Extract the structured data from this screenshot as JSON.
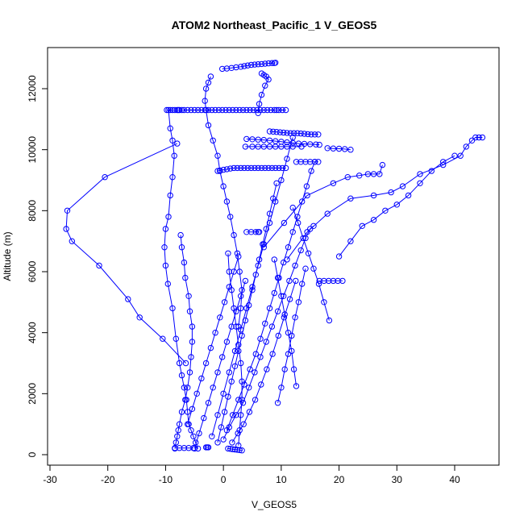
{
  "chart_data": {
    "type": "scatter",
    "title": "ATOM2 Northeast_Pacific_1 V_GEOS5",
    "xlabel": "V_GEOS5",
    "ylabel": "Altitude (m)",
    "xlim": [
      -30,
      45
    ],
    "ylim": [
      0,
      12800
    ],
    "xticks": [
      -30,
      -20,
      -10,
      0,
      10,
      20,
      30,
      40
    ],
    "yticks": [
      0,
      2000,
      4000,
      6000,
      8000,
      10000,
      12000
    ],
    "color": "#0000ff",
    "markers": "open-circle",
    "connected": true,
    "series": [
      {
        "values_x": [
          -9.8,
          -9.2,
          -8.8,
          -8.4,
          -8.0,
          -7.8,
          -7.6,
          -7.2,
          -6.8,
          -6.2,
          -5.6,
          -5.0,
          -4.4,
          -3.8,
          -3.2,
          -2.6,
          -2.0,
          -1.4,
          -0.8,
          -0.2,
          0.4,
          1.0,
          1.6,
          2.2,
          2.8,
          3.4,
          4.0,
          4.6,
          5.2,
          5.8,
          6.4,
          7.0,
          7.6,
          8.2,
          8.8,
          9.2,
          9.6,
          10.2,
          10.8
        ],
        "values_y": [
          11300,
          11300,
          11300,
          11300,
          11300,
          11300,
          11300,
          11300,
          11300,
          11300,
          11300,
          11300,
          11300,
          11300,
          11300,
          11300,
          11300,
          11300,
          11300,
          11300,
          11300,
          11300,
          11300,
          11300,
          11300,
          11300,
          11300,
          11300,
          11300,
          11300,
          11300,
          11300,
          11300,
          11300,
          11300,
          11300,
          11300,
          11300,
          11300
        ]
      },
      {
        "values_x": [
          -8.0,
          -20.5,
          -27.0,
          -27.2,
          -26.2,
          -21.5,
          -16.5,
          -14.5,
          -10.5,
          -6.5
        ],
        "values_y": [
          10200,
          9100,
          8000,
          7400,
          7000,
          6200,
          5100,
          4500,
          3800,
          3000
        ]
      },
      {
        "values_x": [
          -9.5,
          -9.2,
          -8.8,
          -8.5,
          -8.8,
          -9.2,
          -9.5,
          -10.0,
          -10.2,
          -10.0,
          -9.6,
          -8.8,
          -8.2,
          -7.6,
          -7.2,
          -6.8,
          -6.4,
          -6.2,
          -6.0,
          -5.6,
          -5.2,
          -4.8,
          -4.4
        ],
        "values_y": [
          11300,
          10700,
          10300,
          9800,
          9100,
          8500,
          7800,
          7400,
          6800,
          6200,
          5600,
          4800,
          3800,
          3000,
          2600,
          2200,
          1800,
          1400,
          1000,
          800,
          600,
          400,
          200
        ]
      },
      {
        "values_x": [
          -7.4,
          -7.2,
          -6.8,
          -6.6,
          -6.0,
          -5.8,
          -5.4,
          -5.4,
          -5.6,
          -5.8,
          -6.2,
          -6.6,
          -7.2,
          -7.6,
          -7.8,
          -8.0,
          -8.2,
          -8.4
        ],
        "values_y": [
          7200,
          6800,
          6300,
          5800,
          5200,
          4700,
          4200,
          3700,
          3200,
          2700,
          2200,
          1800,
          1400,
          1000,
          800,
          600,
          400,
          200
        ]
      },
      {
        "values_x": [
          -2.2,
          -2.6,
          -3.0,
          -3.2,
          -3.0,
          -2.6,
          -1.8,
          -1.0,
          -0.6,
          0.0,
          0.6,
          1.2,
          1.8,
          2.4,
          2.8,
          3.2,
          3.0,
          2.6
        ],
        "values_y": [
          12400,
          12200,
          12000,
          11600,
          11300,
          10800,
          10300,
          9800,
          9300,
          8800,
          8300,
          7800,
          7200,
          6600,
          6000,
          5400,
          4800,
          4200
        ]
      },
      {
        "values_x": [
          -0.2,
          0.6,
          1.4,
          2.2,
          3.0,
          3.6,
          4.2,
          4.8,
          5.4,
          6.0,
          6.6,
          7.2,
          7.8,
          8.4,
          8.8,
          9.0
        ],
        "values_y": [
          12650,
          12660,
          12680,
          12700,
          12720,
          12740,
          12760,
          12780,
          12790,
          12800,
          12810,
          12820,
          12830,
          12840,
          12840,
          12850
        ]
      },
      {
        "values_x": [
          6.6,
          7.0,
          7.4,
          7.8,
          7.2,
          6.6,
          6.2,
          6.0
        ],
        "values_y": [
          12500,
          12450,
          12400,
          12300,
          12100,
          11800,
          11500,
          11200
        ]
      },
      {
        "values_x": [
          8.0,
          8.6,
          9.2,
          9.8,
          10.4,
          11.0,
          11.6,
          12.2,
          12.8,
          13.4,
          14.0,
          14.6,
          15.2,
          15.8,
          16.4
        ],
        "values_y": [
          10600,
          10590,
          10580,
          10570,
          10560,
          10550,
          10540,
          10540,
          10540,
          10530,
          10520,
          10510,
          10500,
          10500,
          10500
        ]
      },
      {
        "values_x": [
          4.0,
          5.0,
          6.0,
          7.0,
          8.0,
          9.0,
          10.0,
          11.0,
          12.0,
          13.0,
          14.0,
          15.0,
          16.0,
          16.6
        ],
        "values_y": [
          10350,
          10340,
          10330,
          10320,
          10300,
          10280,
          10260,
          10240,
          10220,
          10200,
          10190,
          10180,
          10170,
          10160
        ]
      },
      {
        "values_x": [
          3.8,
          5.0,
          6.0,
          7.0,
          8.0,
          9.0,
          10.0,
          11.0,
          12.0,
          13.5
        ],
        "values_y": [
          10100,
          10100,
          10100,
          10100,
          10100,
          10100,
          10100,
          10100,
          10100,
          10100
        ]
      },
      {
        "values_x": [
          18.0,
          19.0,
          20.0,
          21.0,
          22.0
        ],
        "values_y": [
          10050,
          10040,
          10030,
          10020,
          10000
        ]
      },
      {
        "values_x": [
          -1.0,
          -0.6,
          0.0,
          0.6,
          1.2,
          1.8,
          2.4,
          3.0,
          3.6,
          4.2,
          4.8,
          5.4,
          6.0,
          6.6,
          7.2,
          7.8,
          8.4,
          9.0,
          9.6,
          10.2,
          10.8
        ],
        "values_y": [
          9300,
          9320,
          9340,
          9360,
          9380,
          9400,
          9400,
          9400,
          9400,
          9400,
          9400,
          9400,
          9400,
          9400,
          9400,
          9400,
          9400,
          9400,
          9400,
          9400,
          9400
        ]
      },
      {
        "values_x": [
          12.6,
          13.4,
          14.2,
          15.0,
          15.8,
          16.4
        ],
        "values_y": [
          9600,
          9600,
          9600,
          9600,
          9600,
          9600
        ]
      },
      {
        "values_x": [
          7.0,
          10.5,
          14.5,
          19.0,
          21.5,
          23.5,
          25.0,
          26.0,
          27.0,
          27.5
        ],
        "values_y": [
          6800,
          7600,
          8500,
          8900,
          9100,
          9150,
          9200,
          9200,
          9200,
          9500
        ]
      },
      {
        "values_x": [
          11.0,
          14.5,
          18.0,
          22.0,
          26.0,
          29.0,
          31.0,
          34.0,
          38.0,
          41.0,
          42.0,
          43.0,
          43.6,
          44.2,
          44.8
        ],
        "values_y": [
          6400,
          7300,
          7900,
          8400,
          8500,
          8600,
          8800,
          9200,
          9500,
          9800,
          10100,
          10300,
          10400,
          10400,
          10400
        ]
      },
      {
        "values_x": [
          20.0,
          22.0,
          24.0,
          26.0,
          28.0,
          30.0,
          32.0,
          34.0,
          36.0,
          38.0,
          40.0
        ],
        "values_y": [
          6500,
          7000,
          7500,
          7700,
          8000,
          8200,
          8500,
          8900,
          9300,
          9600,
          9800
        ]
      },
      {
        "values_x": [
          4.0,
          4.8,
          5.6,
          6.0,
          6.2
        ],
        "values_y": [
          7300,
          7300,
          7300,
          7300,
          7300
        ]
      },
      {
        "values_x": [
          16.6,
          17.4,
          18.2,
          19.0,
          19.8,
          20.6
        ],
        "values_y": [
          5700,
          5700,
          5700,
          5700,
          5700,
          5700
        ]
      },
      {
        "values_x": [
          0.8,
          1.2,
          1.6,
          2.0,
          2.4,
          2.8,
          3.2
        ],
        "values_y": [
          200,
          190,
          180,
          170,
          160,
          150,
          140
        ]
      },
      {
        "values_x": [
          -8.4,
          -7.6,
          -6.8,
          -6.0,
          -5.2
        ],
        "values_y": [
          220,
          220,
          220,
          220,
          220
        ]
      },
      {
        "values_x": [
          -3.0,
          -2.8,
          -2.6
        ],
        "values_y": [
          240,
          240,
          240
        ]
      },
      {
        "values_x": [
          1.5,
          2.5,
          3.5,
          4.5,
          5.5,
          6.5,
          7.5,
          8.5,
          9.5,
          10.5,
          11.5,
          12.5
        ],
        "values_y": [
          400,
          700,
          1000,
          1400,
          1800,
          2300,
          2800,
          3300,
          3900,
          4500,
          5100,
          5700
        ]
      },
      {
        "values_x": [
          0.0,
          1.0,
          2.2,
          3.4,
          4.4,
          5.4,
          6.4,
          7.4,
          8.4,
          9.4,
          10.4,
          11.4,
          12.4,
          13.4,
          14.2,
          15.0,
          15.6
        ],
        "values_y": [
          500,
          900,
          1300,
          1700,
          2200,
          2700,
          3200,
          3700,
          4200,
          4700,
          5200,
          5700,
          6200,
          6700,
          7100,
          7400,
          7500
        ]
      },
      {
        "values_x": [
          0.6,
          1.6,
          2.6,
          3.6,
          4.6,
          5.6,
          6.4,
          7.2,
          8.0,
          8.8,
          9.6,
          10.4,
          11.2,
          12.0,
          12.8,
          13.6,
          14.4,
          15.2,
          15.8
        ],
        "values_y": [
          800,
          1300,
          1800,
          2300,
          2800,
          3300,
          3800,
          4300,
          4800,
          5300,
          5800,
          6300,
          6800,
          7300,
          7800,
          8300,
          8800,
          9300,
          9600
        ]
      },
      {
        "values_x": [
          -2.0,
          -1.0,
          0.0,
          1.0,
          2.0,
          3.0,
          4.0,
          5.0,
          6.0,
          7.0,
          8.0,
          9.0,
          10.0,
          11.0,
          12.0
        ],
        "values_y": [
          600,
          1300,
          2000,
          2700,
          3400,
          4100,
          4800,
          5500,
          6200,
          6900,
          7600,
          8300,
          9000,
          9700,
          10400
        ]
      },
      {
        "values_x": [
          -1.0,
          -0.4,
          0.2,
          0.8,
          1.4,
          2.0,
          2.6,
          3.2,
          3.8,
          4.4,
          5.0,
          5.6,
          6.2,
          6.8,
          7.4,
          8.0,
          8.6,
          9.2
        ],
        "values_y": [
          400,
          900,
          1400,
          1900,
          2400,
          2900,
          3400,
          3900,
          4400,
          4900,
          5400,
          5900,
          6400,
          6900,
          7400,
          7900,
          8400,
          8900
        ]
      },
      {
        "values_x": [
          2.6,
          2.8,
          3.0,
          3.2,
          3.2,
          3.0,
          2.6,
          2.2,
          1.8,
          1.4,
          1.0,
          0.8
        ],
        "values_y": [
          300,
          800,
          1300,
          1800,
          2400,
          3000,
          3600,
          4200,
          4800,
          5400,
          6000,
          6600
        ]
      },
      {
        "values_x": [
          9.4,
          10.0,
          10.6,
          11.2,
          11.8,
          12.4,
          13.0,
          13.6,
          14.2
        ],
        "values_y": [
          1700,
          2200,
          2800,
          3300,
          3900,
          4500,
          5000,
          5600,
          6100
        ]
      },
      {
        "values_x": [
          12.6,
          12.2,
          11.8,
          11.2,
          10.6,
          10.0,
          9.4,
          8.8
        ],
        "values_y": [
          2250,
          2800,
          3400,
          4000,
          4600,
          5200,
          5800,
          6400
        ]
      },
      {
        "values_x": [
          18.3,
          17.4,
          16.5,
          15.6,
          14.7,
          13.8,
          12.9,
          12.0
        ],
        "values_y": [
          4400,
          5000,
          5600,
          6100,
          6600,
          7100,
          7600,
          8100
        ]
      },
      {
        "values_x": [
          -5.0,
          -4.2,
          -3.4,
          -2.6,
          -1.8,
          -1.0,
          -0.2,
          0.6,
          1.4,
          2.2,
          3.0,
          3.8
        ],
        "values_y": [
          200,
          700,
          1200,
          1700,
          2200,
          2700,
          3200,
          3700,
          4200,
          4700,
          5200,
          5700
        ]
      },
      {
        "values_x": [
          -6.2,
          -5.4,
          -4.6,
          -3.8,
          -3.0,
          -2.2,
          -1.4,
          -0.6,
          0.2,
          1.0,
          1.8,
          2.6
        ],
        "values_y": [
          1000,
          1500,
          2000,
          2500,
          3000,
          3500,
          4000,
          4500,
          5000,
          5500,
          6000,
          6500
        ]
      }
    ]
  }
}
